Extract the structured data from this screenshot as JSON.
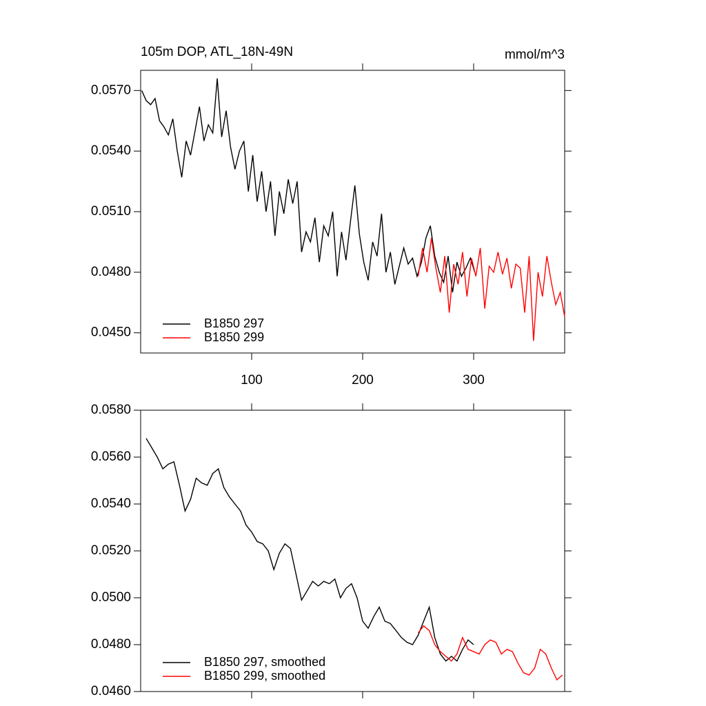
{
  "chart_data": [
    {
      "type": "line",
      "title": "105m DOP, ATL_18N-49N",
      "subtitle": "mmol/m^3",
      "xlim": [
        0,
        382
      ],
      "xticks": [
        100,
        200,
        300
      ],
      "ylim": [
        0.044,
        0.058
      ],
      "yticks": [
        {
          "value": 0.045,
          "label": "0.0450"
        },
        {
          "value": 0.048,
          "label": "0.0480"
        },
        {
          "value": 0.051,
          "label": "0.0510"
        },
        {
          "value": 0.054,
          "label": "0.0540"
        },
        {
          "value": 0.057,
          "label": "0.0570"
        }
      ],
      "legend": "lower left",
      "series": [
        {
          "name": "B1850 297",
          "color": "#000000",
          "x": [
            1,
            5,
            9,
            13,
            17,
            21,
            25,
            29,
            33,
            37,
            41,
            45,
            49,
            53,
            57,
            61,
            65,
            69,
            73,
            77,
            81,
            85,
            89,
            93,
            97,
            101,
            105,
            109,
            113,
            117,
            121,
            125,
            129,
            133,
            137,
            141,
            145,
            149,
            153,
            157,
            161,
            165,
            169,
            173,
            177,
            181,
            185,
            189,
            193,
            197,
            201,
            205,
            209,
            213,
            217,
            221,
            225,
            229,
            233,
            237,
            241,
            245,
            249,
            253,
            257,
            261,
            265,
            269,
            273,
            277,
            281,
            285,
            289,
            293,
            297,
            301
          ],
          "values": [
            0.057,
            0.0565,
            0.0563,
            0.0566,
            0.0555,
            0.0552,
            0.0548,
            0.0556,
            0.054,
            0.0527,
            0.0545,
            0.0538,
            0.055,
            0.0562,
            0.0545,
            0.0553,
            0.0549,
            0.0576,
            0.0547,
            0.056,
            0.0542,
            0.0531,
            0.054,
            0.0545,
            0.052,
            0.0538,
            0.0515,
            0.053,
            0.051,
            0.0525,
            0.0498,
            0.052,
            0.0509,
            0.0526,
            0.0514,
            0.0525,
            0.049,
            0.05,
            0.0495,
            0.0507,
            0.0485,
            0.0503,
            0.0498,
            0.051,
            0.0478,
            0.05,
            0.0486,
            0.0505,
            0.0523,
            0.0499,
            0.0485,
            0.0476,
            0.0495,
            0.0488,
            0.0509,
            0.048,
            0.049,
            0.0474,
            0.0483,
            0.0492,
            0.0484,
            0.0487,
            0.0478,
            0.0485,
            0.0497,
            0.0503,
            0.0488,
            0.048,
            0.0475,
            0.0488,
            0.047,
            0.0485,
            0.0478,
            0.0482,
            0.0487,
            0.048
          ]
        },
        {
          "name": "B1850 299",
          "color": "#ff0000",
          "x": [
            250,
            254,
            258,
            262,
            266,
            270,
            274,
            278,
            282,
            286,
            290,
            294,
            298,
            302,
            306,
            310,
            314,
            318,
            322,
            326,
            330,
            334,
            338,
            342,
            346,
            350,
            354,
            358,
            362,
            366,
            370,
            374,
            378,
            382
          ],
          "values": [
            0.0478,
            0.0492,
            0.048,
            0.0497,
            0.0482,
            0.047,
            0.0488,
            0.046,
            0.0484,
            0.0474,
            0.049,
            0.0468,
            0.0487,
            0.0478,
            0.0492,
            0.0462,
            0.0483,
            0.048,
            0.049,
            0.0479,
            0.0487,
            0.0472,
            0.0484,
            0.0482,
            0.046,
            0.0488,
            0.0446,
            0.048,
            0.0468,
            0.0488,
            0.0475,
            0.0464,
            0.047,
            0.0458
          ]
        }
      ]
    },
    {
      "type": "line",
      "xlim": [
        0,
        382
      ],
      "xticks": [
        100,
        200,
        300
      ],
      "ylim": [
        0.046,
        0.058
      ],
      "yticks": [
        {
          "value": 0.046,
          "label": "0.0460"
        },
        {
          "value": 0.048,
          "label": "0.0480"
        },
        {
          "value": 0.05,
          "label": "0.0500"
        },
        {
          "value": 0.052,
          "label": "0.0520"
        },
        {
          "value": 0.054,
          "label": "0.0540"
        },
        {
          "value": 0.056,
          "label": "0.0560"
        },
        {
          "value": 0.058,
          "label": "0.0580"
        }
      ],
      "legend": "lower left",
      "series": [
        {
          "name": "B1850 297, smoothed",
          "color": "#000000",
          "x": [
            5,
            10,
            15,
            20,
            25,
            30,
            35,
            40,
            45,
            50,
            55,
            60,
            65,
            70,
            75,
            80,
            85,
            90,
            95,
            100,
            105,
            110,
            115,
            120,
            125,
            130,
            135,
            140,
            145,
            150,
            155,
            160,
            165,
            170,
            175,
            180,
            185,
            190,
            195,
            200,
            205,
            210,
            215,
            220,
            225,
            230,
            235,
            240,
            245,
            250,
            255,
            260,
            265,
            270,
            275,
            280,
            285,
            290,
            295,
            300
          ],
          "values": [
            0.0568,
            0.0564,
            0.056,
            0.0555,
            0.0557,
            0.0558,
            0.0548,
            0.0537,
            0.0542,
            0.0551,
            0.0549,
            0.0548,
            0.0553,
            0.0555,
            0.0547,
            0.0543,
            0.054,
            0.0537,
            0.0531,
            0.0528,
            0.0524,
            0.0523,
            0.052,
            0.0512,
            0.0519,
            0.0523,
            0.0521,
            0.051,
            0.0499,
            0.0503,
            0.0507,
            0.0505,
            0.0507,
            0.0506,
            0.0508,
            0.05,
            0.0504,
            0.0506,
            0.05,
            0.049,
            0.0487,
            0.0492,
            0.0496,
            0.049,
            0.0489,
            0.0486,
            0.0483,
            0.0481,
            0.048,
            0.0484,
            0.049,
            0.0496,
            0.0483,
            0.0476,
            0.0473,
            0.0475,
            0.0473,
            0.0478,
            0.0482,
            0.048
          ]
        },
        {
          "name": "B1850 299, smoothed",
          "color": "#ff0000",
          "x": [
            250,
            255,
            260,
            265,
            270,
            275,
            280,
            285,
            290,
            295,
            300,
            305,
            310,
            315,
            320,
            325,
            330,
            335,
            340,
            345,
            350,
            355,
            360,
            365,
            370,
            375,
            380
          ],
          "values": [
            0.0485,
            0.0488,
            0.0486,
            0.048,
            0.0477,
            0.0475,
            0.0473,
            0.0476,
            0.0483,
            0.0478,
            0.0477,
            0.0476,
            0.048,
            0.0482,
            0.0481,
            0.0476,
            0.0478,
            0.0477,
            0.0472,
            0.0468,
            0.0467,
            0.047,
            0.0478,
            0.0476,
            0.047,
            0.0465,
            0.0467
          ]
        }
      ]
    }
  ]
}
